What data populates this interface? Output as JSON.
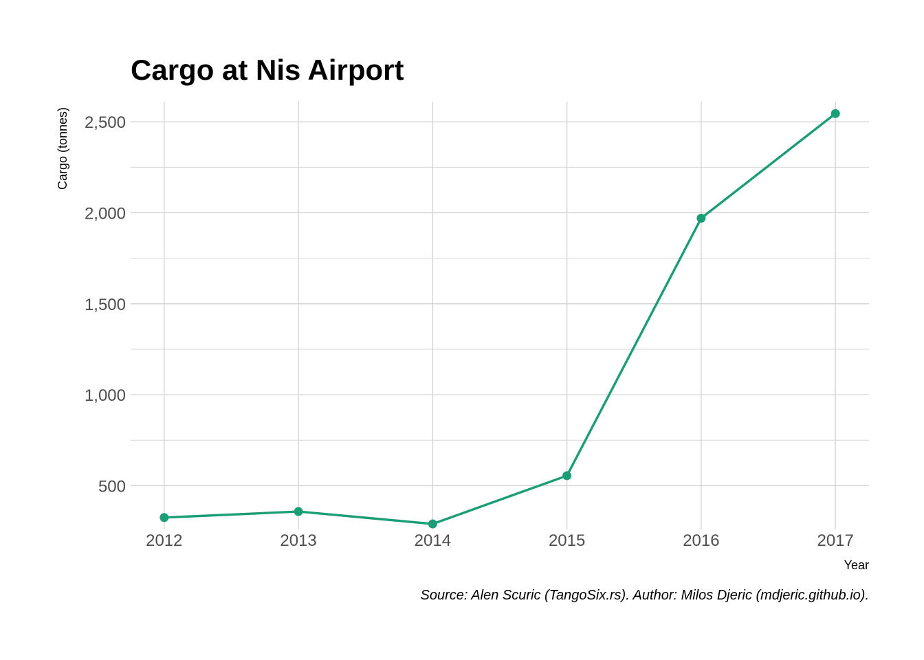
{
  "chart_data": {
    "type": "line",
    "title": "Cargo at Nis Airport",
    "xlabel": "Year",
    "ylabel": "Cargo (tonnes)",
    "caption": "Source: Alen Scuric (TangoSix.rs). Author: Milos Djeric (mdjeric.github.io).",
    "x": [
      2012,
      2013,
      2014,
      2015,
      2016,
      2017
    ],
    "x_tick_labels": [
      "2012",
      "2013",
      "2014",
      "2015",
      "2016",
      "2017"
    ],
    "series": [
      {
        "name": "Cargo",
        "values": [
          325,
          358,
          290,
          555,
          1970,
          2545
        ]
      }
    ],
    "y_ticks": [
      500,
      1000,
      1500,
      2000,
      2500
    ],
    "y_tick_labels": [
      "500",
      "1,000",
      "1,500",
      "2,000",
      "2,500"
    ],
    "ylim": [
      260,
      2610
    ],
    "xlim": [
      2011.75,
      2017.25
    ],
    "grid": true,
    "line_color": "#1b9e77"
  }
}
